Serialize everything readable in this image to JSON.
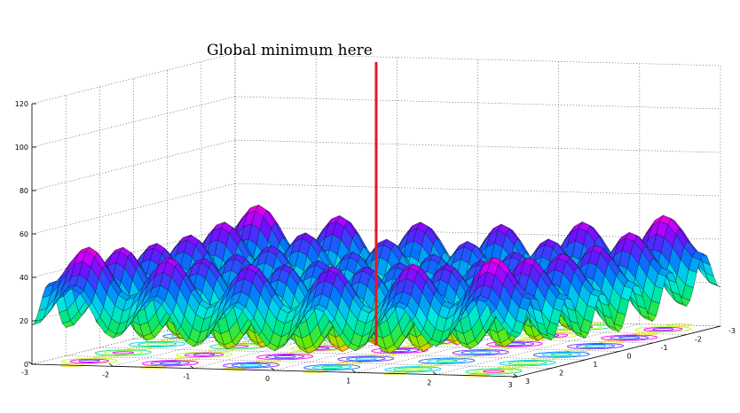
{
  "chart_data": {
    "type": "surface3d",
    "function": "Rastrigin: z = 20 + x^2 + y^2 - 10*(cos(2*pi*x) + cos(2*pi*y))",
    "x": {
      "range": [
        -3,
        3
      ],
      "ticks": [
        "-3",
        "-2",
        "-1",
        "0",
        "1",
        "2",
        "3"
      ]
    },
    "y": {
      "range": [
        -3,
        3
      ],
      "ticks": [
        "-3",
        "-2",
        "-1",
        "0",
        "1",
        "2",
        "3"
      ]
    },
    "z": {
      "range": [
        0,
        120
      ],
      "ticks": [
        "0",
        "20",
        "40",
        "60",
        "80",
        "100",
        "120"
      ]
    },
    "grid": true,
    "colormap": "hsv",
    "contour_projection_on_floor": true,
    "annotation": {
      "text": "Global minimum here",
      "point": {
        "x": 0,
        "y": 0,
        "z": 0
      },
      "line_color": "#e31a1c"
    }
  }
}
